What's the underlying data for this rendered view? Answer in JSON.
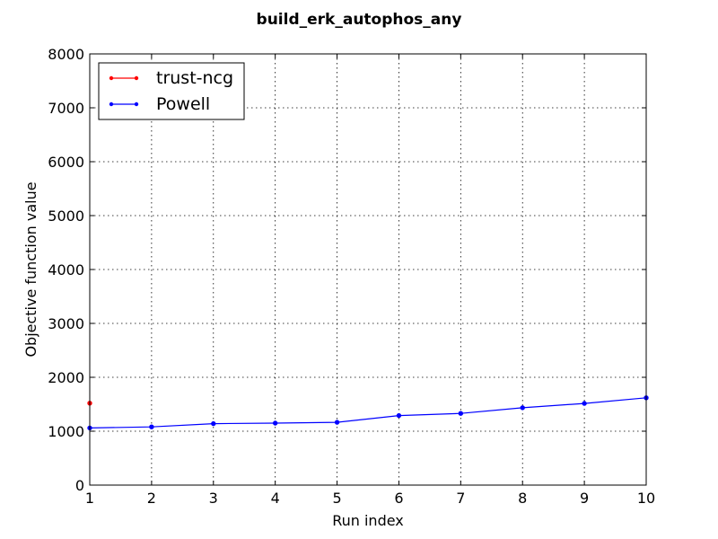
{
  "chart_data": {
    "type": "line",
    "title": "build_erk_autophos_any",
    "xlabel": "Run index",
    "ylabel": "Objective function value",
    "xlim": [
      1,
      10
    ],
    "ylim": [
      0,
      8000
    ],
    "x_ticks": [
      1,
      2,
      3,
      4,
      5,
      6,
      7,
      8,
      9,
      10
    ],
    "y_ticks": [
      0,
      1000,
      2000,
      3000,
      4000,
      5000,
      6000,
      7000,
      8000
    ],
    "grid": true,
    "legend_position": "top-left",
    "series": [
      {
        "name": "trust-ncg",
        "color": "#ff0000",
        "x": [
          1
        ],
        "values": [
          1520
        ]
      },
      {
        "name": "Powell",
        "color": "#0000ff",
        "x": [
          1,
          2,
          3,
          4,
          5,
          6,
          7,
          8,
          9,
          10
        ],
        "values": [
          1060,
          1080,
          1140,
          1150,
          1165,
          1290,
          1330,
          1435,
          1515,
          1620
        ]
      }
    ]
  }
}
